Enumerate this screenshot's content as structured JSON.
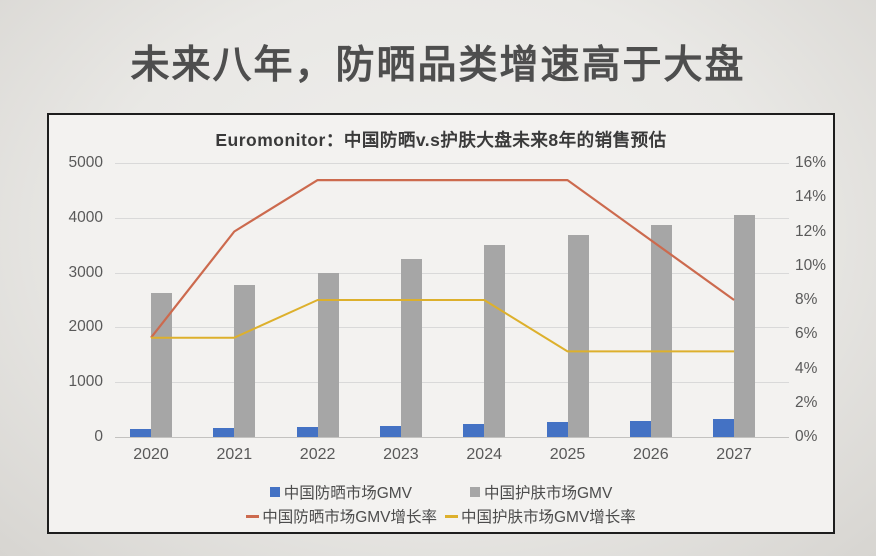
{
  "page_title": "未来八年，防晒品类增速高于大盘",
  "chart": {
    "title": "Euromonitor：中国防晒v.s护肤大盘未来8年的销售预估"
  },
  "chart_data": {
    "type": "bar",
    "subtype": "combo bar+line, dual axis",
    "title": "Euromonitor：中国防晒v.s护肤大盘未来8年的销售预估",
    "categories": [
      "2020",
      "2021",
      "2022",
      "2023",
      "2024",
      "2025",
      "2026",
      "2027"
    ],
    "series": [
      {
        "name": "中国防晒市场GMV",
        "type": "bar",
        "axis": "left",
        "color": "#4472c4",
        "values": [
          145,
          160,
          180,
          205,
          235,
          270,
          300,
          325
        ]
      },
      {
        "name": "中国护肤市场GMV",
        "type": "bar",
        "axis": "left",
        "color": "#a6a6a6",
        "values": [
          2620,
          2780,
          3000,
          3250,
          3500,
          3680,
          3870,
          4060
        ]
      },
      {
        "name": "中国防晒市场GMV增长率",
        "type": "line",
        "axis": "right",
        "color": "#cc6a4e",
        "values_pct": [
          5.8,
          12,
          15,
          15,
          15,
          15,
          11.5,
          8
        ]
      },
      {
        "name": "中国护肤市场GMV增长率",
        "type": "line",
        "axis": "right",
        "color": "#ddb02c",
        "values_pct": [
          5.8,
          5.8,
          8,
          8,
          8,
          5,
          5,
          5
        ]
      }
    ],
    "left_axis": {
      "min": 0,
      "max": 5000,
      "ticks": [
        "0",
        "1000",
        "2000",
        "3000",
        "4000",
        "5000"
      ]
    },
    "right_axis": {
      "min": "0%",
      "max": "16%",
      "ticks": [
        "0%",
        "2%",
        "4%",
        "6%",
        "8%",
        "10%",
        "12%",
        "14%",
        "16%"
      ]
    },
    "grid": true,
    "legend_position": "bottom",
    "legend": [
      "中国防晒市场GMV",
      "中国护肤市场GMV",
      "中国防晒市场GMV增长率",
      "中国护肤市场GMV增长率"
    ]
  },
  "colors": {
    "sunscreen_bar": "#4472c4",
    "skincare_bar": "#a6a6a6",
    "sunscreen_growth_line": "#cc6a4e",
    "skincare_growth_line": "#ddb02c",
    "gridline": "#d9d9d9",
    "axis_text": "#595959",
    "title_text": "#4e4e4e"
  }
}
